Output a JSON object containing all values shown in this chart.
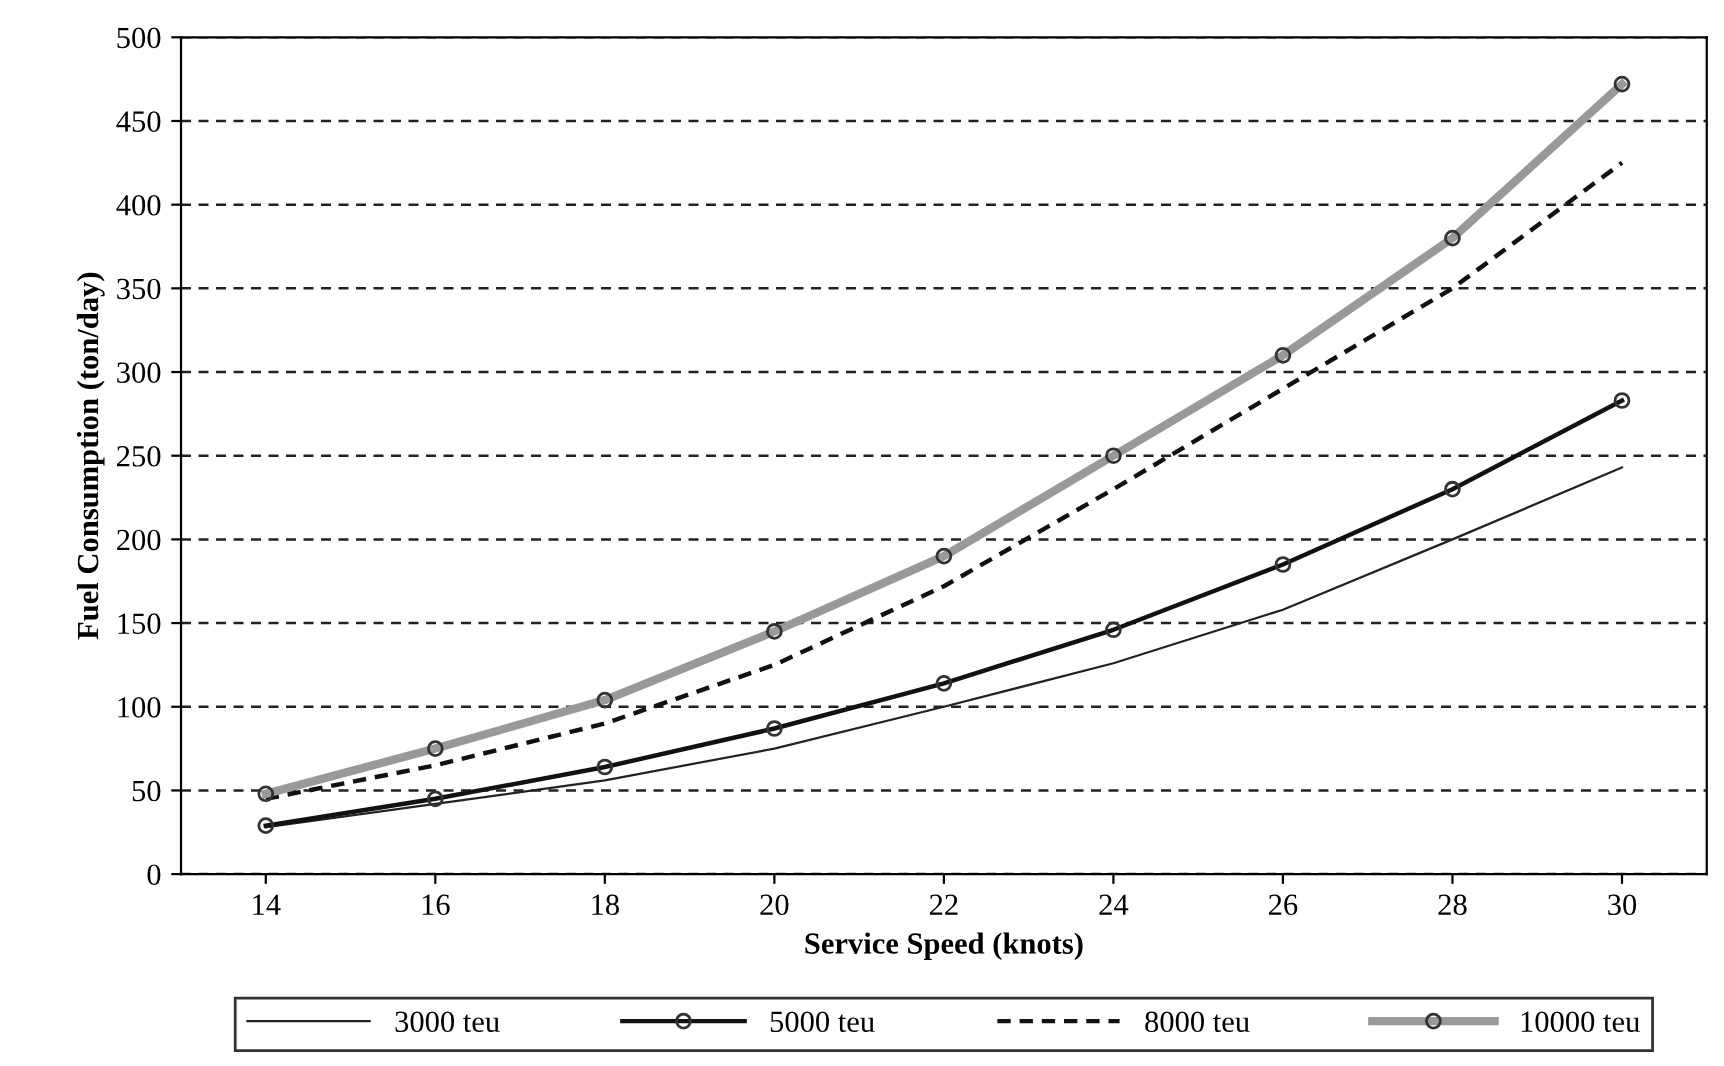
{
  "chart_data": {
    "type": "line",
    "xlabel": "Service Speed (knots)",
    "ylabel": "Fuel Consumption (ton/day)",
    "categories": [
      "14",
      "16",
      "18",
      "20",
      "22",
      "24",
      "26",
      "28",
      "30"
    ],
    "ylim": [
      0,
      500
    ],
    "yticks": [
      0,
      50,
      100,
      150,
      200,
      250,
      300,
      350,
      400,
      450,
      500
    ],
    "grid": "y",
    "legend": "bottom",
    "series": [
      {
        "name": "3000 teu",
        "color": "#222222",
        "marker": "none",
        "line_style": "solid",
        "values": [
          28,
          42,
          56,
          75,
          100,
          126,
          158,
          200,
          243
        ]
      },
      {
        "name": "5000 teu",
        "color": "#111111",
        "marker": "circle",
        "line_style": "solid",
        "values": [
          29,
          45,
          64,
          87,
          114,
          146,
          185,
          230,
          283
        ]
      },
      {
        "name": "8000 teu",
        "color": "#111111",
        "marker": "none",
        "line_style": "dashed",
        "values": [
          45,
          65,
          90,
          125,
          172,
          230,
          290,
          350,
          425
        ]
      },
      {
        "name": "10000 teu",
        "color": "#999999",
        "marker": "circle",
        "line_style": "solid",
        "values": [
          48,
          75,
          104,
          145,
          190,
          250,
          310,
          380,
          472
        ]
      }
    ]
  }
}
